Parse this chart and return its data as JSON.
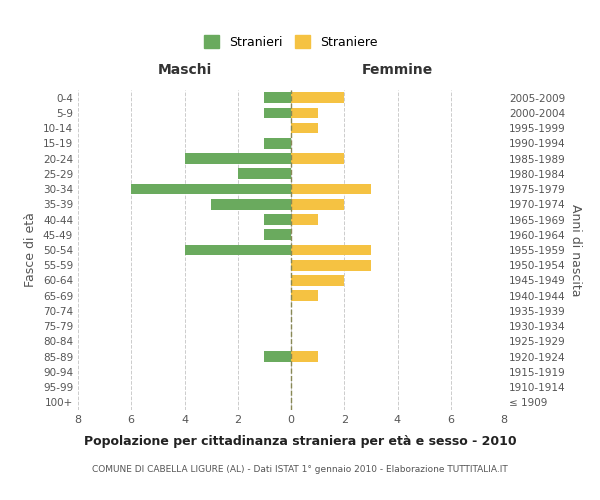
{
  "age_groups": [
    "100+",
    "95-99",
    "90-94",
    "85-89",
    "80-84",
    "75-79",
    "70-74",
    "65-69",
    "60-64",
    "55-59",
    "50-54",
    "45-49",
    "40-44",
    "35-39",
    "30-34",
    "25-29",
    "20-24",
    "15-19",
    "10-14",
    "5-9",
    "0-4"
  ],
  "birth_years": [
    "≤ 1909",
    "1910-1914",
    "1915-1919",
    "1920-1924",
    "1925-1929",
    "1930-1934",
    "1935-1939",
    "1940-1944",
    "1945-1949",
    "1950-1954",
    "1955-1959",
    "1960-1964",
    "1965-1969",
    "1970-1974",
    "1975-1979",
    "1980-1984",
    "1985-1989",
    "1990-1994",
    "1995-1999",
    "2000-2004",
    "2005-2009"
  ],
  "maschi": [
    0,
    0,
    0,
    1,
    0,
    0,
    0,
    0,
    0,
    0,
    4,
    1,
    1,
    3,
    6,
    2,
    4,
    1,
    0,
    1,
    1
  ],
  "femmine": [
    0,
    0,
    0,
    1,
    0,
    0,
    0,
    1,
    2,
    3,
    3,
    0,
    1,
    2,
    3,
    0,
    2,
    0,
    1,
    1,
    2
  ],
  "maschi_color": "#6aaa5e",
  "femmine_color": "#f5c242",
  "grid_color": "#cccccc",
  "center_line_color": "#888855",
  "bg_color": "#ffffff",
  "title": "Popolazione per cittadinanza straniera per età e sesso - 2010",
  "subtitle": "COMUNE DI CABELLA LIGURE (AL) - Dati ISTAT 1° gennaio 2010 - Elaborazione TUTTITALIA.IT",
  "xlabel_left": "Maschi",
  "xlabel_right": "Femmine",
  "ylabel_left": "Fasce di età",
  "ylabel_right": "Anni di nascita",
  "legend_maschi": "Stranieri",
  "legend_femmine": "Straniere",
  "xlim": 8,
  "xticks": [
    -8,
    -6,
    -4,
    -2,
    0,
    2,
    4,
    6,
    8
  ],
  "xticklabels": [
    "8",
    "6",
    "4",
    "2",
    "0",
    "2",
    "4",
    "6",
    "8"
  ]
}
